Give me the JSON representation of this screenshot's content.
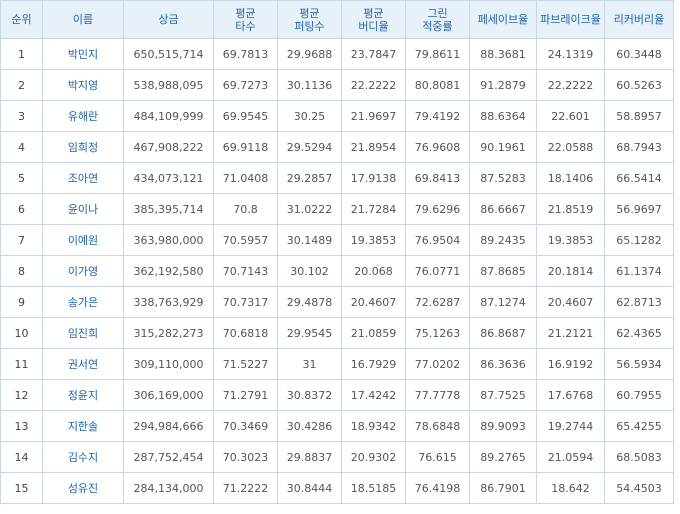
{
  "table": {
    "columns": [
      {
        "key": "rank",
        "label": "순위"
      },
      {
        "key": "name",
        "label": "이름"
      },
      {
        "key": "prize",
        "label": "상금"
      },
      {
        "key": "avg_strokes",
        "label": "평균\n타수"
      },
      {
        "key": "avg_putts",
        "label": "평균\n퍼팅수"
      },
      {
        "key": "avg_birdie_rate",
        "label": "평균\n버디율"
      },
      {
        "key": "gir",
        "label": "그린\n적중률"
      },
      {
        "key": "fairway",
        "label": "페세이브율"
      },
      {
        "key": "break_rate",
        "label": "파브레이크율"
      },
      {
        "key": "recovery",
        "label": "리커버리율"
      }
    ],
    "rows": [
      [
        "1",
        "박민지",
        "650,515,714",
        "69.7813",
        "29.9688",
        "23.7847",
        "79.8611",
        "88.3681",
        "24.1319",
        "60.3448"
      ],
      [
        "2",
        "박지영",
        "538,988,095",
        "69.7273",
        "30.1136",
        "22.2222",
        "80.8081",
        "91.2879",
        "22.2222",
        "60.5263"
      ],
      [
        "3",
        "유해란",
        "484,109,999",
        "69.9545",
        "30.25",
        "21.9697",
        "79.4192",
        "88.6364",
        "22.601",
        "58.8957"
      ],
      [
        "4",
        "임희정",
        "467,908,222",
        "69.9118",
        "29.5294",
        "21.8954",
        "76.9608",
        "90.1961",
        "22.0588",
        "68.7943"
      ],
      [
        "5",
        "조아연",
        "434,073,121",
        "71.0408",
        "29.2857",
        "17.9138",
        "69.8413",
        "87.5283",
        "18.1406",
        "66.5414"
      ],
      [
        "6",
        "윤이나",
        "385,395,714",
        "70.8",
        "31.0222",
        "21.7284",
        "79.6296",
        "86.6667",
        "21.8519",
        "56.9697"
      ],
      [
        "7",
        "이예원",
        "363,980,000",
        "70.5957",
        "30.1489",
        "19.3853",
        "76.9504",
        "89.2435",
        "19.3853",
        "65.1282"
      ],
      [
        "8",
        "이가영",
        "362,192,580",
        "70.7143",
        "30.102",
        "20.068",
        "76.0771",
        "87.8685",
        "20.1814",
        "61.1374"
      ],
      [
        "9",
        "송가은",
        "338,763,929",
        "70.7317",
        "29.4878",
        "20.4607",
        "72.6287",
        "87.1274",
        "20.4607",
        "62.8713"
      ],
      [
        "10",
        "임진희",
        "315,282,273",
        "70.6818",
        "29.9545",
        "21.0859",
        "75.1263",
        "86.8687",
        "21.2121",
        "62.4365"
      ],
      [
        "11",
        "권서연",
        "309,110,000",
        "71.5227",
        "31",
        "16.7929",
        "77.0202",
        "86.3636",
        "16.9192",
        "56.5934"
      ],
      [
        "12",
        "정윤지",
        "306,169,000",
        "71.2791",
        "30.8372",
        "17.4242",
        "77.7778",
        "87.7525",
        "17.6768",
        "60.7955"
      ],
      [
        "13",
        "지한솔",
        "294,984,666",
        "70.3469",
        "30.4286",
        "18.9342",
        "78.6848",
        "89.9093",
        "19.2744",
        "65.4255"
      ],
      [
        "14",
        "김수지",
        "287,752,454",
        "70.3023",
        "29.8837",
        "20.9302",
        "76.615",
        "89.2765",
        "21.0594",
        "68.5083"
      ],
      [
        "15",
        "성유진",
        "284,134,000",
        "71.2222",
        "30.8444",
        "18.5185",
        "76.4198",
        "86.7901",
        "18.642",
        "54.4503"
      ]
    ]
  },
  "colors": {
    "header_bg": "#e7f1f9",
    "header_text": "#1f64a8",
    "border": "#c9d6e3",
    "name_text": "#1f64a8",
    "cell_text": "#555555"
  }
}
